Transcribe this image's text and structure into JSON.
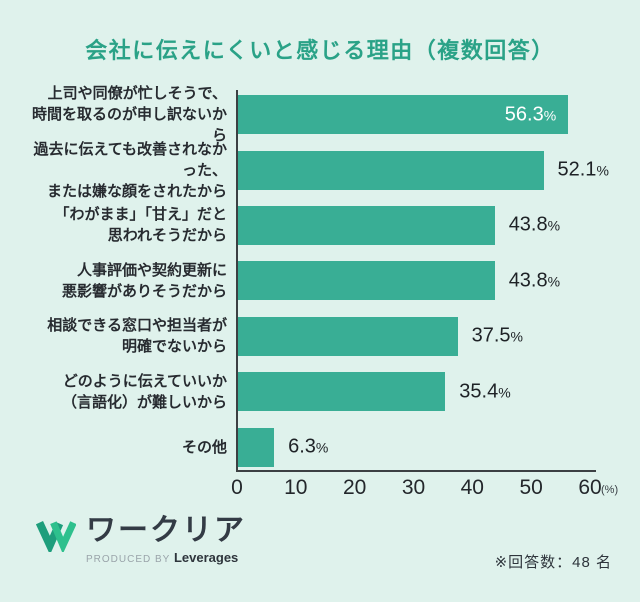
{
  "title": "会社に伝えにくいと感じる理由（複数回答）",
  "colors": {
    "background": "#DFF2EC",
    "bar": "#39AE95",
    "title": "#2AA287",
    "axis": "#3C4043",
    "text_dark": "#272B30",
    "value_inside": "#FFFFFF"
  },
  "chart_data": {
    "type": "bar",
    "orientation": "horizontal",
    "title": "会社に伝えにくいと感じる理由（複数回答）",
    "categories": [
      [
        "上司や同僚が忙しそうで、",
        "時間を取るのが申し訳ないから"
      ],
      [
        "過去に伝えても改善されなかった、",
        "または嫌な顔をされたから"
      ],
      [
        "「わがまま」「甘え」だと",
        "思われそうだから"
      ],
      [
        "人事評価や契約更新に",
        "悪影響がありそうだから"
      ],
      [
        "相談できる窓口や担当者が",
        "明確でないから"
      ],
      [
        "どのように伝えていいか",
        "（言語化）が難しいから"
      ],
      [
        "その他"
      ]
    ],
    "values": [
      56.3,
      52.1,
      43.8,
      43.8,
      37.5,
      35.4,
      6.3
    ],
    "unit": "%",
    "value_inside_bar": [
      true,
      false,
      false,
      false,
      false,
      false,
      false
    ],
    "xlim": [
      0,
      60
    ],
    "x_ticks": [
      "0",
      "10",
      "20",
      "30",
      "40",
      "50",
      "60"
    ],
    "x_unit_label": "(%)",
    "grid": false,
    "legend": false
  },
  "footer": {
    "logo_text": "ワークリア",
    "produced_by": "PRODUCED BY",
    "brand": "Leverages",
    "note": "※回答数：48 名"
  }
}
